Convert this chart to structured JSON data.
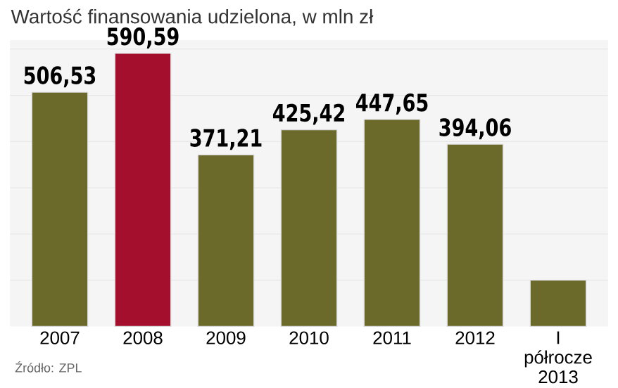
{
  "chart_data": {
    "type": "bar",
    "title": "Wartość finansowania udzielona, w mln zł",
    "categories": [
      "2007",
      "2008",
      "2009",
      "2010",
      "2011",
      "2012",
      "I półrocze 2013"
    ],
    "values": [
      506.53,
      590.59,
      371.21,
      425.42,
      447.65,
      394.06,
      100
    ],
    "value_labels": [
      "506,53",
      "590,59",
      "371,21",
      "425,42",
      "447,65",
      "394,06",
      null
    ],
    "colors": [
      "#6b6a2b",
      "#a30f2c",
      "#6b6a2b",
      "#6b6a2b",
      "#6b6a2b",
      "#6b6a2b",
      "#6b6a2b"
    ],
    "ylim": [
      0,
      620
    ],
    "yticks": [
      {
        "value": 100,
        "label": null
      },
      {
        "value": 200,
        "label": null
      },
      {
        "value": 300,
        "label": null
      },
      {
        "value": 400,
        "label": null
      },
      {
        "value": 500,
        "label": null
      },
      {
        "value": 600,
        "label": null
      }
    ],
    "tick_labels": "x",
    "grid": "y",
    "annotations": [
      "Źródło: ZPL"
    ]
  }
}
